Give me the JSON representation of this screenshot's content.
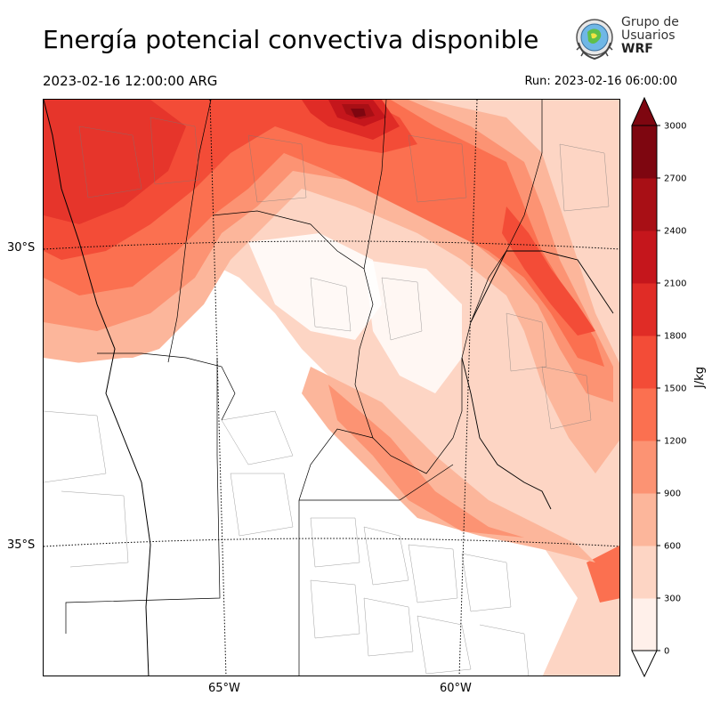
{
  "title": "Energía potencial convectiva disponible",
  "valid_time": "2023-02-16 12:00:00 ARG",
  "run_time": "Run: 2023-02-16 06:00:00",
  "logo": {
    "line1": "Grupo de",
    "line2": "Usuarios",
    "line3": "WRF"
  },
  "lat_labels": [
    "30°S",
    "35°S"
  ],
  "lon_labels": [
    "65°W",
    "60°W"
  ],
  "colorbar": {
    "unit": "J/kg",
    "ticks": [
      "0",
      "300",
      "600",
      "900",
      "1200",
      "1500",
      "1800",
      "2100",
      "2400",
      "2700",
      "3000"
    ],
    "colors": [
      "#fff0ea",
      "#fdd5c4",
      "#fcb69b",
      "#fc9373",
      "#fb7050",
      "#f34c37",
      "#e02c26",
      "#c5161c",
      "#a80f15",
      "#7e0610"
    ]
  },
  "colors": {
    "text": "#000000",
    "border": "#000000"
  }
}
